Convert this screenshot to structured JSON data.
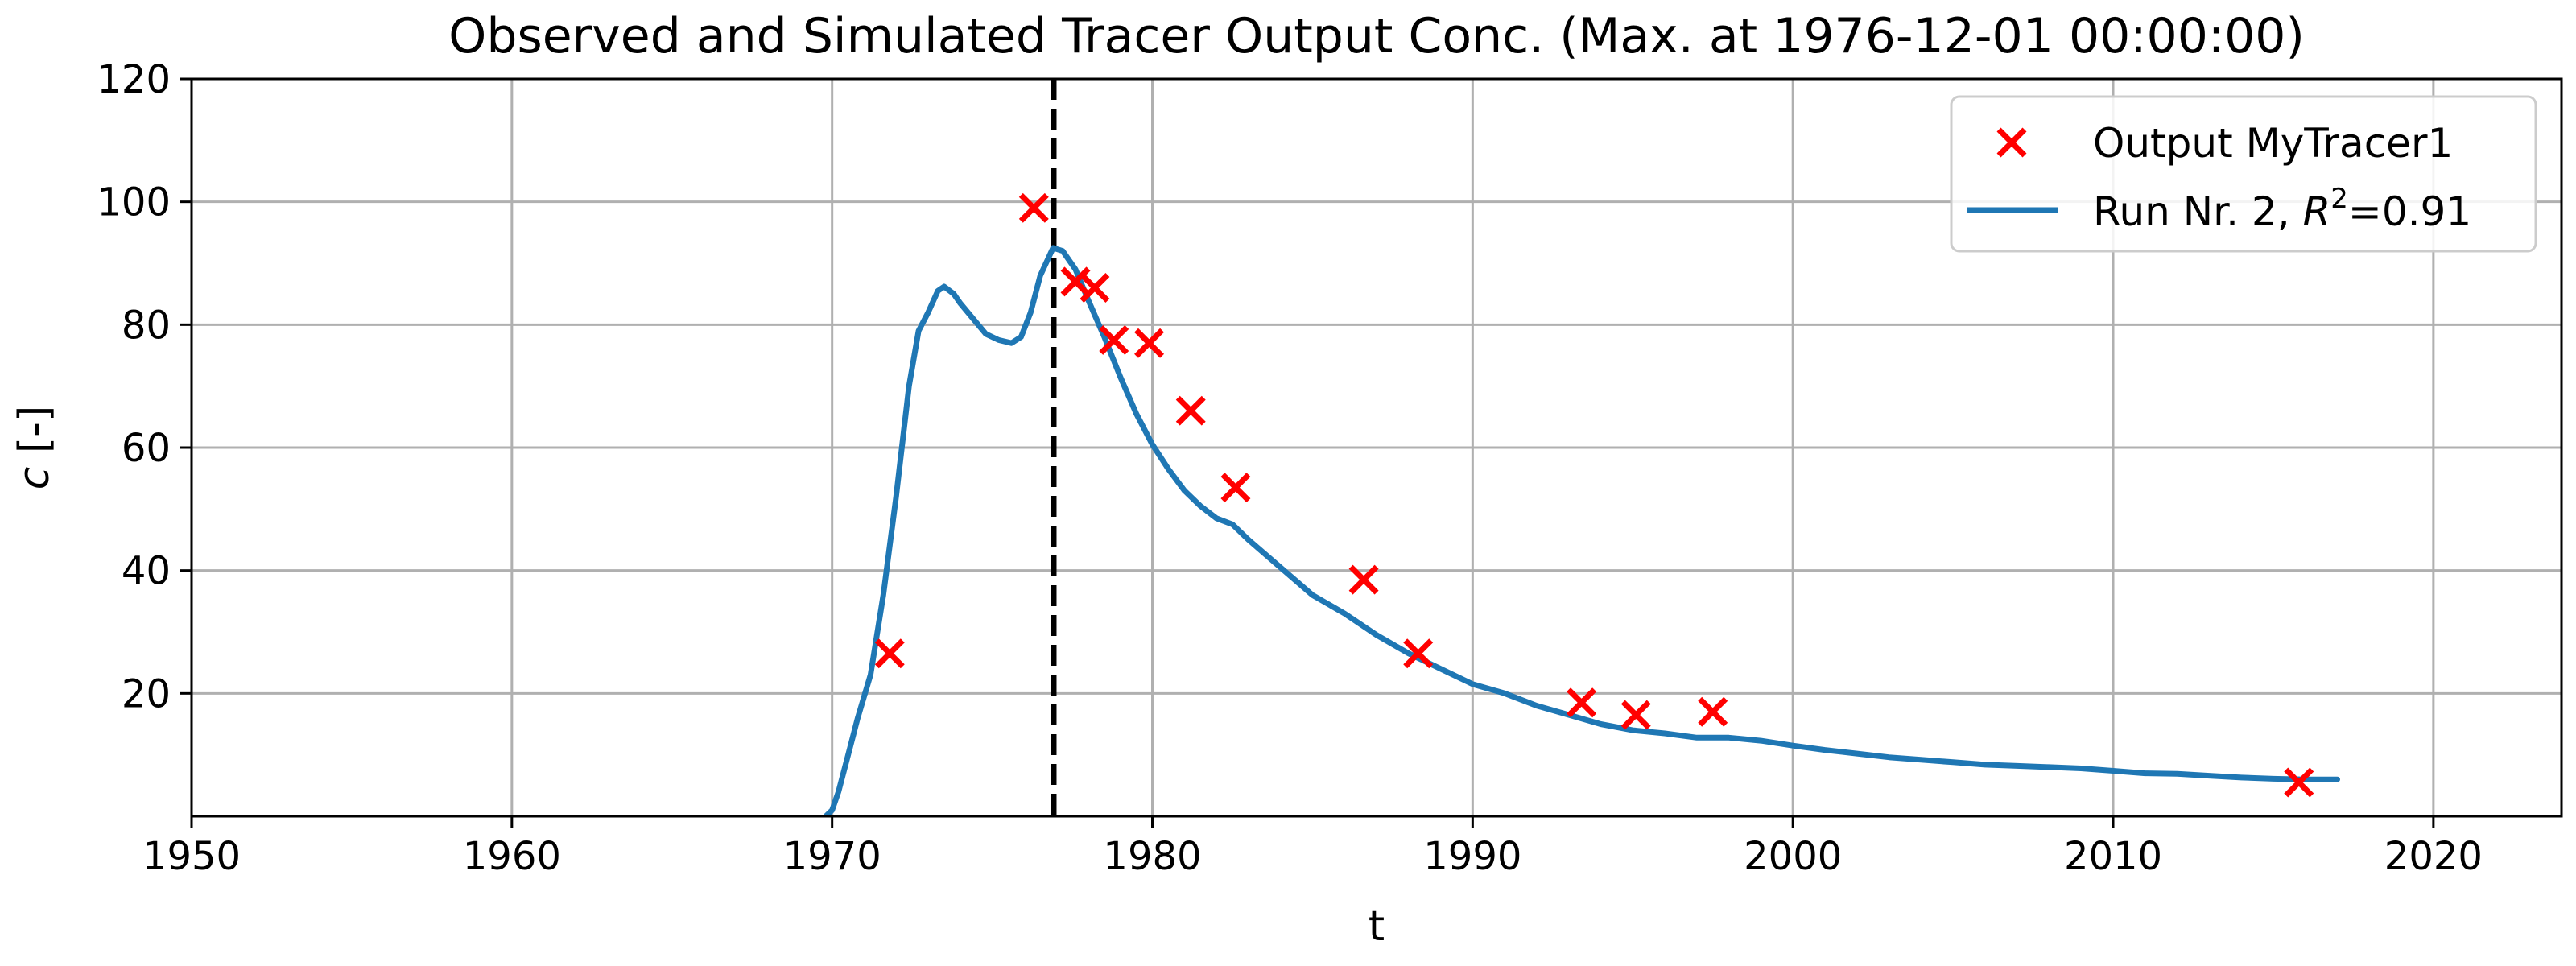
{
  "chart_data": {
    "type": "scatter",
    "title": "Observed and Simulated Tracer Output Conc. (Max. at 1976-12-01 00:00:00)",
    "xlabel": "t",
    "ylabel_symbol": "c",
    "ylabel_unit": "[-]",
    "xlim": [
      1950,
      2024
    ],
    "ylim": [
      0,
      120
    ],
    "x_ticks": [
      1950,
      1960,
      1970,
      1980,
      1990,
      2000,
      2010,
      2020
    ],
    "y_ticks": [
      20,
      40,
      60,
      80,
      100,
      120
    ],
    "grid": true,
    "legend_position": "top-right",
    "vertical_line": {
      "x": 1976.92,
      "style": "dashed",
      "color": "#000000"
    },
    "series": [
      {
        "name": "Output MyTracer1",
        "kind": "scatter",
        "marker": "x",
        "color": "#ff0000",
        "points": [
          [
            1971.8,
            26.5
          ],
          [
            1976.3,
            99.0
          ],
          [
            1977.6,
            87.0
          ],
          [
            1978.2,
            86.0
          ],
          [
            1978.8,
            77.5
          ],
          [
            1979.9,
            77.0
          ],
          [
            1981.2,
            66.0
          ],
          [
            1982.6,
            53.5
          ],
          [
            1986.6,
            38.5
          ],
          [
            1988.3,
            26.5
          ],
          [
            1993.4,
            18.5
          ],
          [
            1995.1,
            16.5
          ],
          [
            1997.5,
            17.0
          ],
          [
            2015.8,
            5.5
          ]
        ]
      },
      {
        "name_prefix": "Run Nr. 2, ",
        "name_r": "R",
        "name_sup": "2",
        "name_suffix": "=0.91",
        "kind": "line",
        "color": "#1f77b4",
        "points": [
          [
            1969.8,
            0
          ],
          [
            1970.0,
            1
          ],
          [
            1970.2,
            4
          ],
          [
            1970.5,
            10
          ],
          [
            1970.8,
            16
          ],
          [
            1971.2,
            23
          ],
          [
            1971.6,
            36
          ],
          [
            1972.0,
            52
          ],
          [
            1972.4,
            70
          ],
          [
            1972.7,
            79
          ],
          [
            1973.0,
            82
          ],
          [
            1973.3,
            85.5
          ],
          [
            1973.5,
            86.2
          ],
          [
            1973.8,
            85
          ],
          [
            1974.0,
            83.5
          ],
          [
            1974.4,
            81
          ],
          [
            1974.8,
            78.5
          ],
          [
            1975.2,
            77.5
          ],
          [
            1975.6,
            77
          ],
          [
            1975.9,
            78
          ],
          [
            1976.2,
            82
          ],
          [
            1976.5,
            88
          ],
          [
            1976.9,
            92.5
          ],
          [
            1977.2,
            92
          ],
          [
            1977.6,
            89
          ],
          [
            1978.0,
            84
          ],
          [
            1978.5,
            78
          ],
          [
            1979.0,
            71.5
          ],
          [
            1979.5,
            65.5
          ],
          [
            1980.0,
            60.5
          ],
          [
            1980.5,
            56.5
          ],
          [
            1981.0,
            53
          ],
          [
            1981.5,
            50.5
          ],
          [
            1982.0,
            48.5
          ],
          [
            1982.5,
            47.5
          ],
          [
            1983.0,
            45
          ],
          [
            1984.0,
            40.5
          ],
          [
            1985.0,
            36
          ],
          [
            1986.0,
            33
          ],
          [
            1987.0,
            29.5
          ],
          [
            1988.0,
            26.5
          ],
          [
            1989.0,
            24
          ],
          [
            1990.0,
            21.5
          ],
          [
            1991.0,
            20
          ],
          [
            1992.0,
            18
          ],
          [
            1993.0,
            16.5
          ],
          [
            1994.0,
            15
          ],
          [
            1995.0,
            14
          ],
          [
            1996.0,
            13.5
          ],
          [
            1997.0,
            12.8
          ],
          [
            1998.0,
            12.8
          ],
          [
            1999.0,
            12.3
          ],
          [
            2000.0,
            11.5
          ],
          [
            2001.0,
            10.8
          ],
          [
            2002.0,
            10.2
          ],
          [
            2003.0,
            9.6
          ],
          [
            2004.0,
            9.2
          ],
          [
            2005.0,
            8.8
          ],
          [
            2006.0,
            8.4
          ],
          [
            2007.0,
            8.2
          ],
          [
            2008.0,
            8.0
          ],
          [
            2009.0,
            7.8
          ],
          [
            2010.0,
            7.4
          ],
          [
            2011.0,
            7.0
          ],
          [
            2012.0,
            6.9
          ],
          [
            2013.0,
            6.6
          ],
          [
            2014.0,
            6.3
          ],
          [
            2015.0,
            6.1
          ],
          [
            2016.0,
            6.0
          ],
          [
            2017.0,
            6.0
          ]
        ]
      }
    ]
  }
}
